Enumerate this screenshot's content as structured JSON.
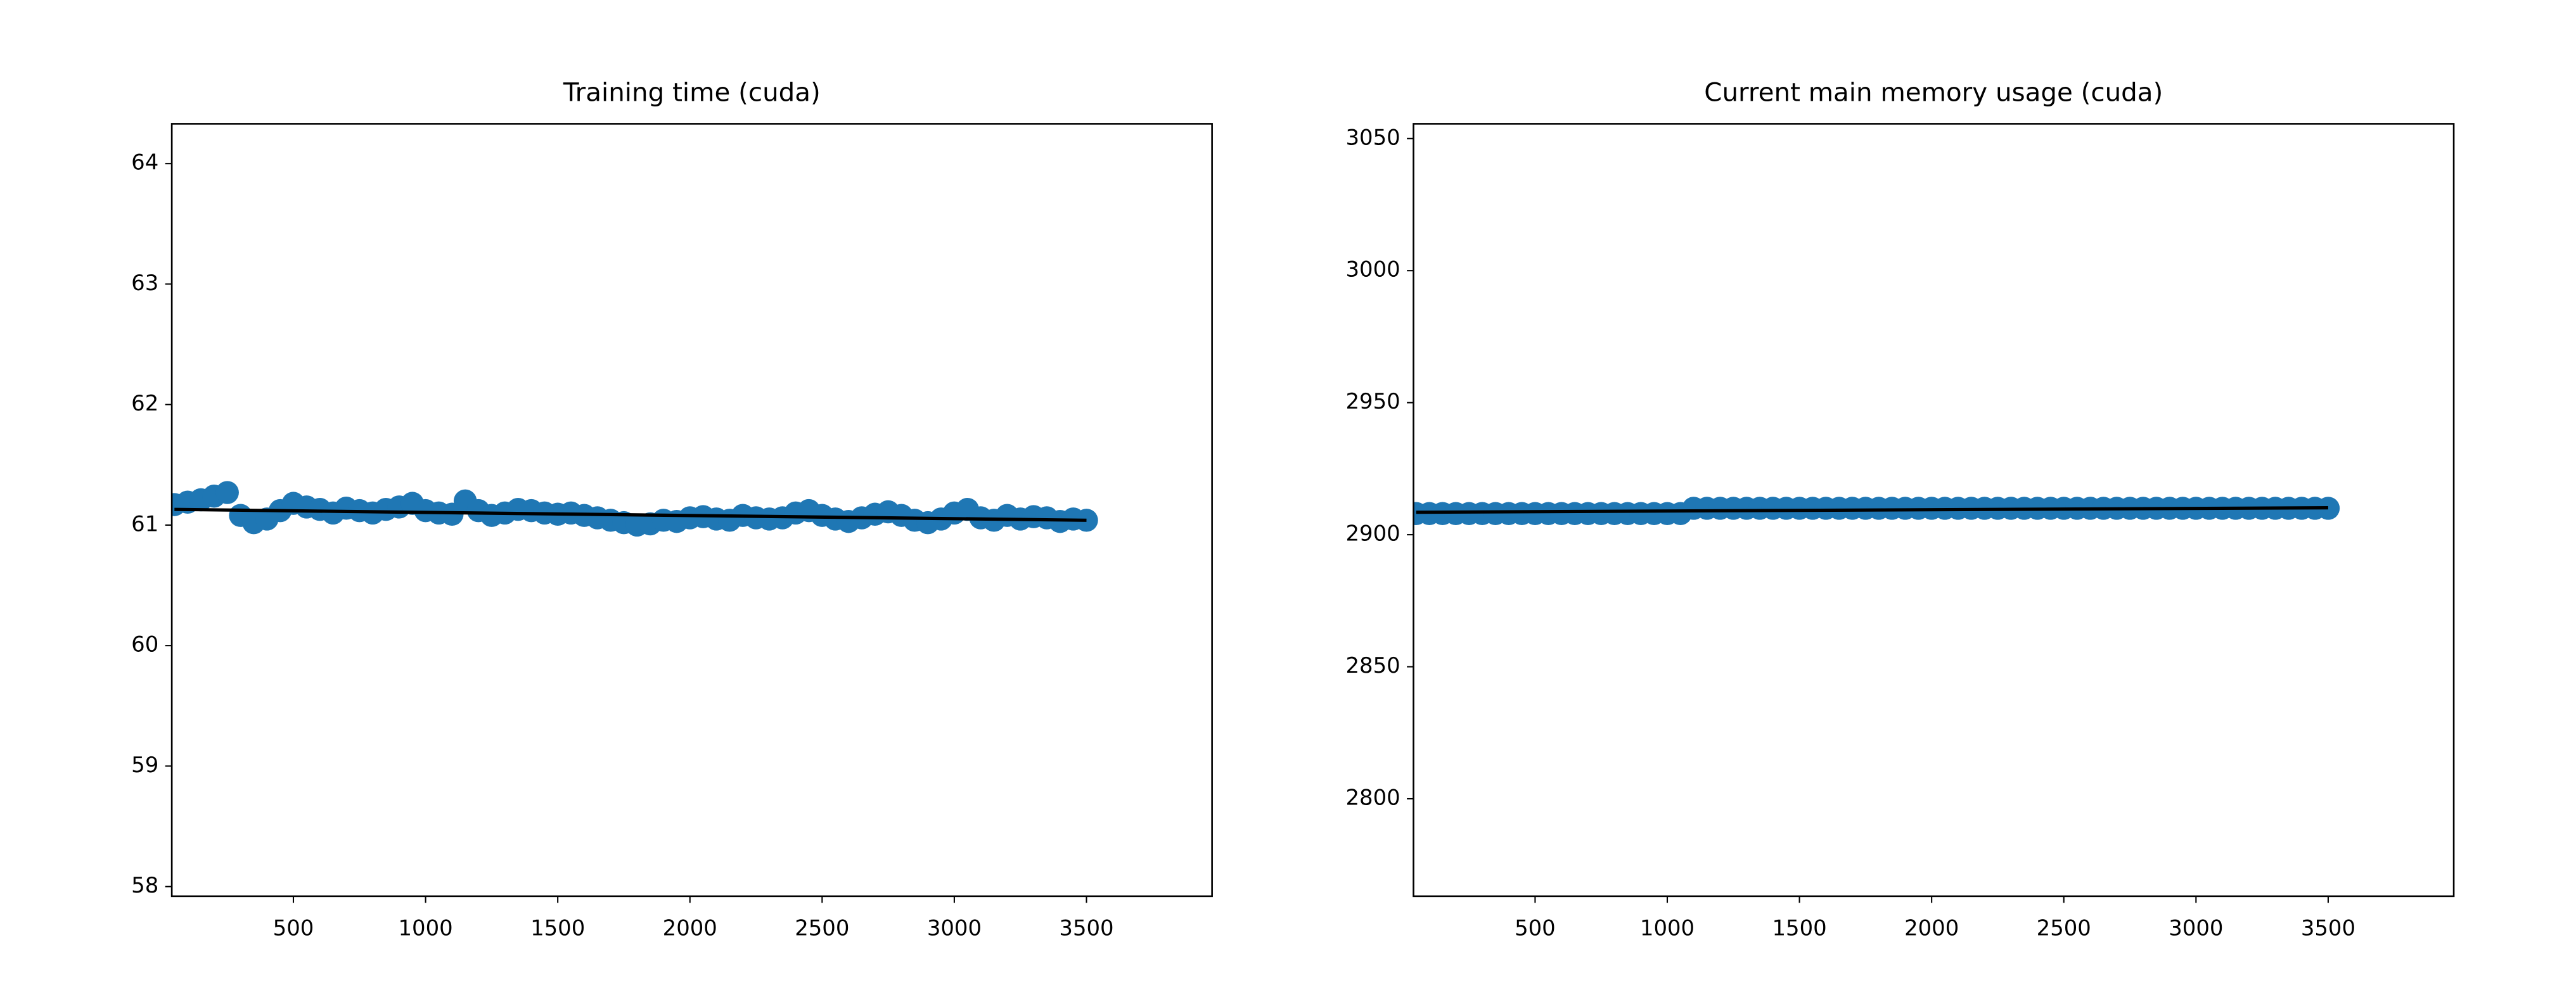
{
  "chart_data": [
    {
      "type": "scatter",
      "title": "Training time (cuda)",
      "color": "#1f77b4",
      "trend_color": "#000000",
      "xlim": [
        40,
        3975
      ],
      "ylim": [
        57.92,
        64.33
      ],
      "xticks": [
        500,
        1000,
        1500,
        2000,
        2500,
        3000,
        3500
      ],
      "yticks": [
        58,
        59,
        60,
        61,
        62,
        63,
        64
      ],
      "x": [
        50,
        100,
        150,
        200,
        250,
        300,
        350,
        400,
        450,
        500,
        550,
        600,
        650,
        700,
        750,
        800,
        850,
        900,
        950,
        1000,
        1050,
        1100,
        1150,
        1200,
        1250,
        1300,
        1350,
        1400,
        1450,
        1500,
        1550,
        1600,
        1650,
        1700,
        1750,
        1800,
        1850,
        1900,
        1950,
        2000,
        2050,
        2100,
        2150,
        2200,
        2250,
        2300,
        2350,
        2400,
        2450,
        2500,
        2550,
        2600,
        2650,
        2700,
        2750,
        2800,
        2850,
        2900,
        2950,
        3000,
        3050,
        3100,
        3150,
        3200,
        3250,
        3300,
        3350,
        3400,
        3450,
        3500
      ],
      "values": [
        61.17,
        61.19,
        61.21,
        61.24,
        61.27,
        61.08,
        61.02,
        61.05,
        61.12,
        61.18,
        61.15,
        61.13,
        61.1,
        61.14,
        61.12,
        61.1,
        61.13,
        61.15,
        61.18,
        61.12,
        61.1,
        61.09,
        61.2,
        61.12,
        61.08,
        61.1,
        61.13,
        61.12,
        61.1,
        61.09,
        61.1,
        61.08,
        61.06,
        61.04,
        61.02,
        61.0,
        61.01,
        61.04,
        61.03,
        61.06,
        61.07,
        61.05,
        61.04,
        61.08,
        61.06,
        61.05,
        61.06,
        61.1,
        61.12,
        61.08,
        61.05,
        61.03,
        61.06,
        61.09,
        61.11,
        61.08,
        61.04,
        61.02,
        61.05,
        61.1,
        61.13,
        61.06,
        61.04,
        61.08,
        61.05,
        61.07,
        61.06,
        61.03,
        61.05,
        61.04
      ],
      "trend": {
        "x": [
          50,
          3500
        ],
        "values": [
          61.13,
          61.04
        ]
      }
    },
    {
      "type": "scatter",
      "title": "Current main memory usage (cuda)",
      "color": "#1f77b4",
      "trend_color": "#000000",
      "xlim": [
        40,
        3975
      ],
      "ylim": [
        2763.1,
        3055.6
      ],
      "xticks": [
        500,
        1000,
        1500,
        2000,
        2500,
        3000,
        3500
      ],
      "yticks": [
        2800,
        2850,
        2900,
        2950,
        3000,
        3050
      ],
      "x": [
        50,
        100,
        150,
        200,
        250,
        300,
        350,
        400,
        450,
        500,
        550,
        600,
        650,
        700,
        750,
        800,
        850,
        900,
        950,
        1000,
        1050,
        1100,
        1150,
        1200,
        1250,
        1300,
        1350,
        1400,
        1450,
        1500,
        1550,
        1600,
        1650,
        1700,
        1750,
        1800,
        1850,
        1900,
        1950,
        2000,
        2050,
        2100,
        2150,
        2200,
        2250,
        2300,
        2350,
        2400,
        2450,
        2500,
        2550,
        2600,
        2650,
        2700,
        2750,
        2800,
        2850,
        2900,
        2950,
        3000,
        3050,
        3100,
        3150,
        3200,
        3250,
        3300,
        3350,
        3400,
        3450,
        3500
      ],
      "values": [
        2908,
        2908,
        2908,
        2908,
        2908,
        2908,
        2908,
        2908,
        2908,
        2908,
        2908,
        2908,
        2908,
        2908,
        2908,
        2908,
        2908,
        2908,
        2908,
        2908,
        2908,
        2910,
        2910,
        2910,
        2910,
        2910,
        2910,
        2910,
        2910,
        2910,
        2910,
        2910,
        2910,
        2910,
        2910,
        2910,
        2910,
        2910,
        2910,
        2910,
        2910,
        2910,
        2910,
        2910,
        2910,
        2910,
        2910,
        2910,
        2910,
        2910,
        2910,
        2910,
        2910,
        2910,
        2910,
        2910,
        2910,
        2910,
        2910,
        2910,
        2910,
        2910,
        2910,
        2910,
        2910,
        2910,
        2910,
        2910,
        2910,
        2910
      ],
      "trend": {
        "x": [
          50,
          3500
        ],
        "values": [
          2908.5,
          2910.2
        ]
      }
    }
  ]
}
